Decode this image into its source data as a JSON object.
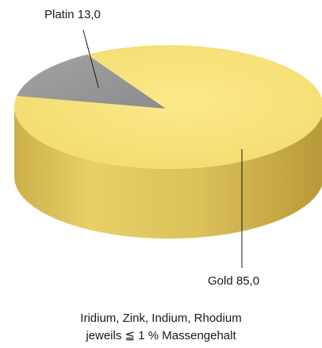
{
  "chart_data": {
    "type": "pie",
    "title": "",
    "slices": [
      {
        "label": "Gold",
        "value": 85.0,
        "color": "#f6e27a",
        "display": "Gold 85,0"
      },
      {
        "label": "Platin",
        "value": 13.0,
        "color": "#9a9a9a",
        "display": "Platin 13,0"
      }
    ],
    "annotations": [
      "Iridium, Zink, Indium, Rhodium",
      "jeweils ≦ 1 % Massengehalt"
    ],
    "style": "3d-pie",
    "legend": "none"
  },
  "colors": {
    "gold_top": "#f6e27a",
    "gold_side": "#e0c45a",
    "platin_top": "#9a9a9a",
    "label_text": "#1a1a1a"
  }
}
